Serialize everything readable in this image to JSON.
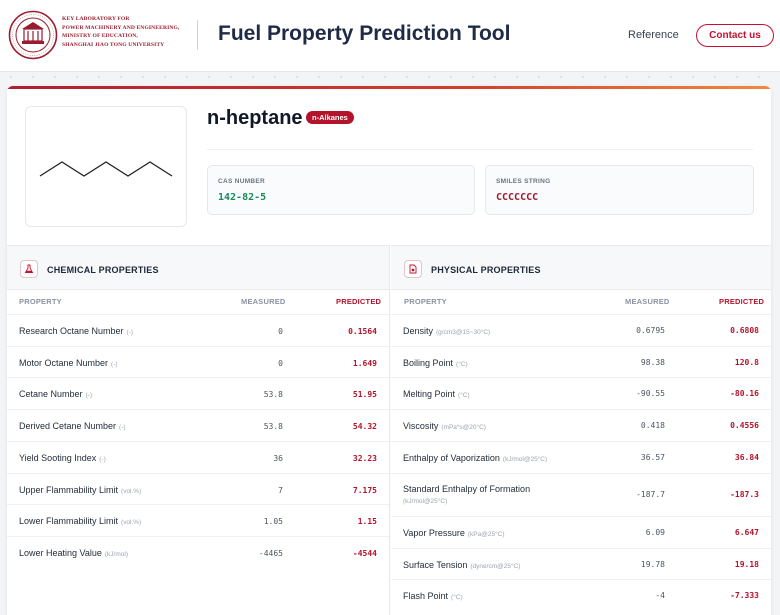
{
  "header": {
    "lab_name_lines": [
      "KEY LABORATORY FOR",
      "POWER MACHINERY AND ENGINEERING,",
      "MINISTRY OF EDUCATION,",
      "SHANGHAI JIAO TONG UNIVERSITY"
    ],
    "title": "Fuel Property Prediction Tool",
    "nav_reference": "Reference",
    "contact_label": "Contact us",
    "logo_icon": "university-seal-icon"
  },
  "compound": {
    "name": "n-heptane",
    "class_badge": "n-Alkanes",
    "structure_icon": "zigzag-chain-structure",
    "cas_label": "CAS NUMBER",
    "cas_value": "142-82-5",
    "smiles_label": "SMILES STRING",
    "smiles_value": "CCCCCCC"
  },
  "chemical": {
    "title": "CHEMICAL PROPERTIES",
    "icon": "flask-icon",
    "col_property": "PROPERTY",
    "col_measured": "MEASURED",
    "col_predicted": "PREDICTED",
    "rows": [
      {
        "name": "Research Octane Number",
        "unit": "(-)",
        "measured": "0",
        "predicted": "0.1564"
      },
      {
        "name": "Motor Octane Number",
        "unit": "(-)",
        "measured": "0",
        "predicted": "1.649"
      },
      {
        "name": "Cetane Number",
        "unit": "(-)",
        "measured": "53.8",
        "predicted": "51.95"
      },
      {
        "name": "Derived Cetane Number",
        "unit": "(-)",
        "measured": "53.8",
        "predicted": "54.32"
      },
      {
        "name": "Yield Sooting Index",
        "unit": "(-)",
        "measured": "36",
        "predicted": "32.23"
      },
      {
        "name": "Upper Flammability Limit",
        "unit": "(vol.%)",
        "measured": "7",
        "predicted": "7.175"
      },
      {
        "name": "Lower Flammability Limit",
        "unit": "(vol.%)",
        "measured": "1.05",
        "predicted": "1.15"
      },
      {
        "name": "Lower Heating Value",
        "unit": "(kJ/mol)",
        "measured": "-4465",
        "predicted": "-4544"
      }
    ]
  },
  "physical": {
    "title": "PHYSICAL PROPERTIES",
    "icon": "document-icon",
    "col_property": "PROPERTY",
    "col_measured": "MEASURED",
    "col_predicted": "PREDICTED",
    "rows": [
      {
        "name": "Density",
        "unit": "(g/cm3@15~30°C)",
        "measured": "0.6795",
        "predicted": "0.6808"
      },
      {
        "name": "Boiling Point",
        "unit": "(°C)",
        "measured": "98.38",
        "predicted": "120.8"
      },
      {
        "name": "Melting Point",
        "unit": "(°C)",
        "measured": "-90.55",
        "predicted": "-80.16"
      },
      {
        "name": "Viscosity",
        "unit": "(mPa*s@20°C)",
        "measured": "0.418",
        "predicted": "0.4556"
      },
      {
        "name": "Enthalpy of Vaporization",
        "unit": "(kJ/mol@25°C)",
        "measured": "36.57",
        "predicted": "36.84"
      },
      {
        "name": "Standard Enthalpy of Formation",
        "unit": "(kJ/mol@25°C)",
        "measured": "-187.7",
        "predicted": "-187.3"
      },
      {
        "name": "Vapor Pressure",
        "unit": "(kPa@25°C)",
        "measured": "6.09",
        "predicted": "6.647"
      },
      {
        "name": "Surface Tension",
        "unit": "(dyne/cm@25°C)",
        "measured": "19.78",
        "predicted": "19.18"
      },
      {
        "name": "Flash Point",
        "unit": "(°C)",
        "measured": "-4",
        "predicted": "-7.333"
      }
    ]
  }
}
